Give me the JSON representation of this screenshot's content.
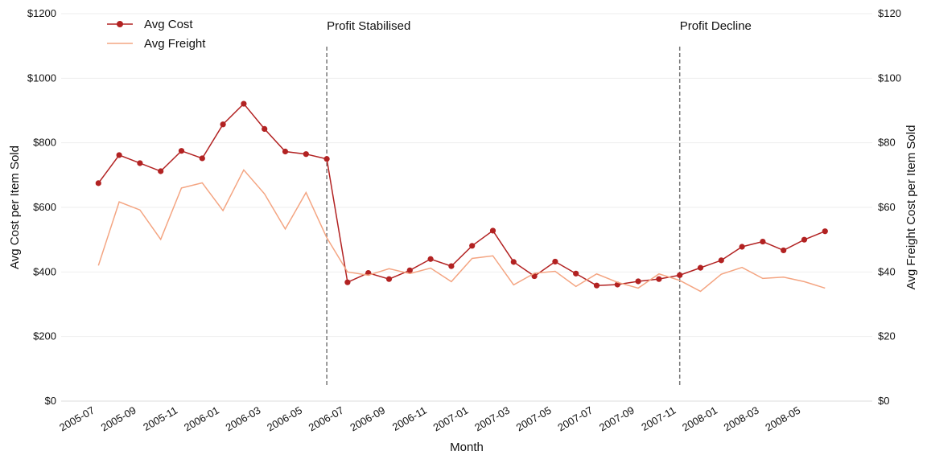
{
  "chart_data": {
    "type": "line",
    "xlabel": "Month",
    "ylabel_left": "Avg Cost per Item Sold",
    "ylabel_right": "Avg Freight Cost per Item Sold",
    "ylim_left": [
      0,
      1200
    ],
    "ylim_right": [
      0,
      120
    ],
    "grid": "horizontal",
    "legend_position": "top-left",
    "x_ticks": [
      "2005-07",
      "2005-09",
      "2005-11",
      "2006-01",
      "2006-03",
      "2006-05",
      "2006-07",
      "2006-09",
      "2006-11",
      "2007-01",
      "2007-03",
      "2007-05",
      "2007-07",
      "2007-09",
      "2007-11",
      "2008-01",
      "2008-03",
      "2008-05"
    ],
    "y_ticks_left": [
      "$0",
      "$200",
      "$400",
      "$600",
      "$800",
      "$1000",
      "$1200"
    ],
    "y_ticks_right": [
      "$0",
      "$20",
      "$40",
      "$60",
      "$80",
      "$100",
      "$120"
    ],
    "x": [
      "2005-08",
      "2005-09",
      "2005-10",
      "2005-11",
      "2005-12",
      "2006-01",
      "2006-02",
      "2006-03",
      "2006-04",
      "2006-05",
      "2006-06",
      "2006-07",
      "2006-08",
      "2006-09",
      "2006-10",
      "2006-11",
      "2006-12",
      "2007-01",
      "2007-02",
      "2007-03",
      "2007-04",
      "2007-05",
      "2007-06",
      "2007-07",
      "2007-08",
      "2007-09",
      "2007-10",
      "2007-11",
      "2007-12",
      "2008-01",
      "2008-02",
      "2008-03",
      "2008-04",
      "2008-05",
      "2008-06",
      "2008-07"
    ],
    "series": [
      {
        "name": "Avg Cost",
        "axis": "left",
        "color": "#b22222",
        "marker": "circle",
        "values": [
          675,
          762,
          737,
          712,
          775,
          752,
          857,
          921,
          843,
          773,
          765,
          750,
          368,
          397,
          378,
          405,
          440,
          418,
          481,
          528,
          431,
          387,
          432,
          395,
          358,
          361,
          371,
          378,
          390,
          413,
          436,
          478,
          494,
          467,
          500,
          526
        ]
      },
      {
        "name": "Avg Freight",
        "axis": "right",
        "color": "#f4a582",
        "marker": "none",
        "values": [
          42,
          61.7,
          59.2,
          50.1,
          66,
          67.6,
          59,
          71.6,
          64.2,
          53.3,
          64.6,
          50.6,
          40,
          39,
          41,
          39.5,
          41.2,
          37,
          44.2,
          45,
          36,
          39.6,
          40.2,
          35.5,
          39.4,
          36.8,
          35,
          39.4,
          37.4,
          34,
          39.3,
          41.4,
          38,
          38.4,
          37,
          35
        ]
      }
    ],
    "annotations": [
      {
        "label": "Profit Stabilised",
        "x": "2006-07",
        "style": "dashed-vertical"
      },
      {
        "label": "Profit Decline",
        "x": "2007-12",
        "style": "dashed-vertical"
      }
    ]
  }
}
